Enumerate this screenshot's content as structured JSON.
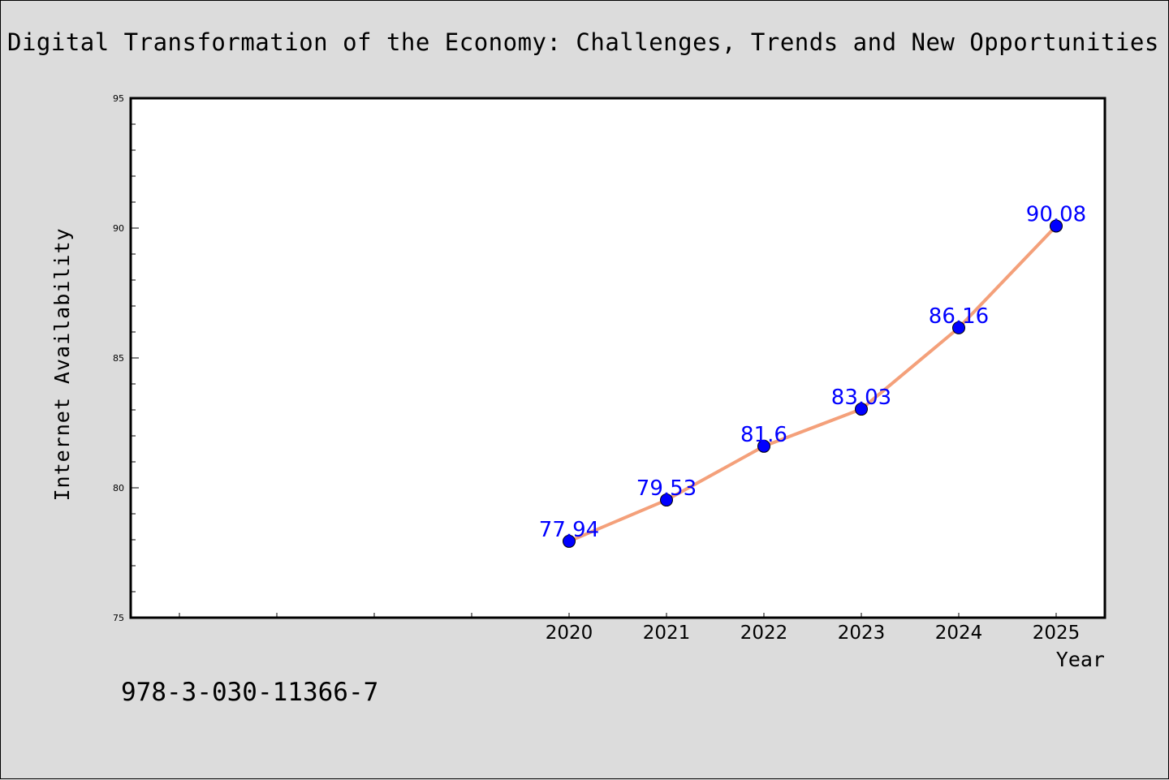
{
  "page": {
    "title": "Digital Transformation of the Economy: Challenges, Trends and New Opportunities",
    "footer_code": "978-3-030-11366-7"
  },
  "colors": {
    "background": "#dcdcdc",
    "plot_bg": "#ffffff",
    "line": "#f4a07a",
    "marker": "#0000ff",
    "label": "#0000ff"
  },
  "chart_data": {
    "type": "line",
    "title": "Digital Transformation of the Economy: Challenges, Trends and New Opportunities",
    "xlabel": "Year",
    "ylabel": "Internet Availability",
    "x": [
      2020,
      2021,
      2022,
      2023,
      2024,
      2025
    ],
    "x_tick_labels": [
      "2020",
      "2021",
      "2022",
      "2023",
      "2024",
      "2025"
    ],
    "xlim": [
      2015.5,
      2025.5
    ],
    "ylim": [
      75,
      95
    ],
    "y_ticks": [
      75,
      80,
      85,
      90,
      95
    ],
    "series": [
      {
        "values": [
          77.94,
          79.53,
          81.6,
          83.03,
          86.16,
          90.08
        ],
        "labels": [
          "77.94",
          "79.53",
          "81.6",
          "83.03",
          "86.16",
          "90.08"
        ]
      }
    ],
    "grid": false,
    "legend": "none"
  }
}
